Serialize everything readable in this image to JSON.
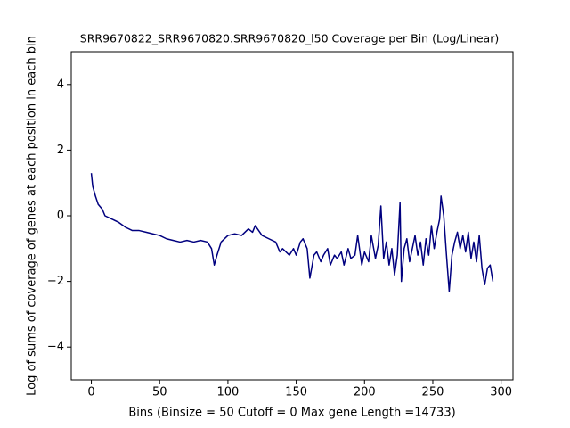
{
  "chart_data": {
    "type": "line",
    "title": "SRR9670822_SRR9670820.SRR9670820_l50 Coverage per Bin (Log/Linear)",
    "x_label": "Bins  (Binsize = 50 Cutoff = 0 Max gene Length =14733)",
    "y_label": "Log of sums of coverage of genes at each position in each bin",
    "x": [
      0,
      1,
      3,
      5,
      8,
      10,
      15,
      20,
      25,
      30,
      35,
      40,
      45,
      50,
      55,
      60,
      65,
      70,
      75,
      80,
      85,
      88,
      90,
      92,
      95,
      100,
      105,
      110,
      115,
      118,
      120,
      125,
      130,
      135,
      138,
      140,
      145,
      148,
      150,
      153,
      155,
      158,
      160,
      163,
      165,
      168,
      170,
      173,
      175,
      178,
      180,
      183,
      185,
      188,
      190,
      193,
      195,
      198,
      200,
      203,
      205,
      208,
      210,
      212,
      214,
      216,
      218,
      220,
      222,
      224,
      226,
      227,
      229,
      231,
      233,
      235,
      237,
      239,
      241,
      243,
      245,
      247,
      249,
      251,
      253,
      255,
      256,
      258,
      260,
      262,
      264,
      266,
      268,
      270,
      272,
      274,
      276,
      278,
      280,
      282,
      284,
      286,
      288,
      290,
      292,
      294
    ],
    "series": [
      {
        "color": "#00007f",
        "values": [
          1.3,
          0.9,
          0.6,
          0.35,
          0.2,
          0.0,
          -0.1,
          -0.2,
          -0.35,
          -0.45,
          -0.45,
          -0.5,
          -0.55,
          -0.6,
          -0.7,
          -0.75,
          -0.8,
          -0.75,
          -0.8,
          -0.75,
          -0.8,
          -1.0,
          -1.5,
          -1.2,
          -0.8,
          -0.6,
          -0.55,
          -0.6,
          -0.4,
          -0.5,
          -0.3,
          -0.6,
          -0.7,
          -0.8,
          -1.1,
          -1.0,
          -1.2,
          -1.0,
          -1.2,
          -0.8,
          -0.7,
          -1.0,
          -1.9,
          -1.2,
          -1.1,
          -1.4,
          -1.2,
          -1.0,
          -1.5,
          -1.2,
          -1.3,
          -1.1,
          -1.5,
          -1.0,
          -1.3,
          -1.2,
          -0.6,
          -1.5,
          -1.1,
          -1.4,
          -0.6,
          -1.3,
          -0.9,
          0.3,
          -1.3,
          -0.8,
          -1.5,
          -1.0,
          -1.8,
          -1.2,
          0.4,
          -2.0,
          -1.0,
          -0.7,
          -1.4,
          -1.0,
          -0.6,
          -1.2,
          -0.8,
          -1.5,
          -0.7,
          -1.2,
          -0.3,
          -1.0,
          -0.5,
          -0.1,
          0.6,
          0.0,
          -1.2,
          -2.3,
          -1.2,
          -0.8,
          -0.5,
          -1.0,
          -0.6,
          -1.1,
          -0.5,
          -1.3,
          -0.8,
          -1.4,
          -0.6,
          -1.6,
          -2.1,
          -1.6,
          -1.5,
          -2.0
        ]
      }
    ],
    "xlim": [
      -14.7,
      308.7
    ],
    "ylim": [
      -5,
      5
    ],
    "xticks": [
      0,
      50,
      100,
      150,
      200,
      250,
      300
    ],
    "yticks": [
      {
        "value": -4,
        "label": "−4"
      },
      {
        "value": -2,
        "label": "−2"
      },
      0,
      2,
      4
    ],
    "grid": false
  }
}
